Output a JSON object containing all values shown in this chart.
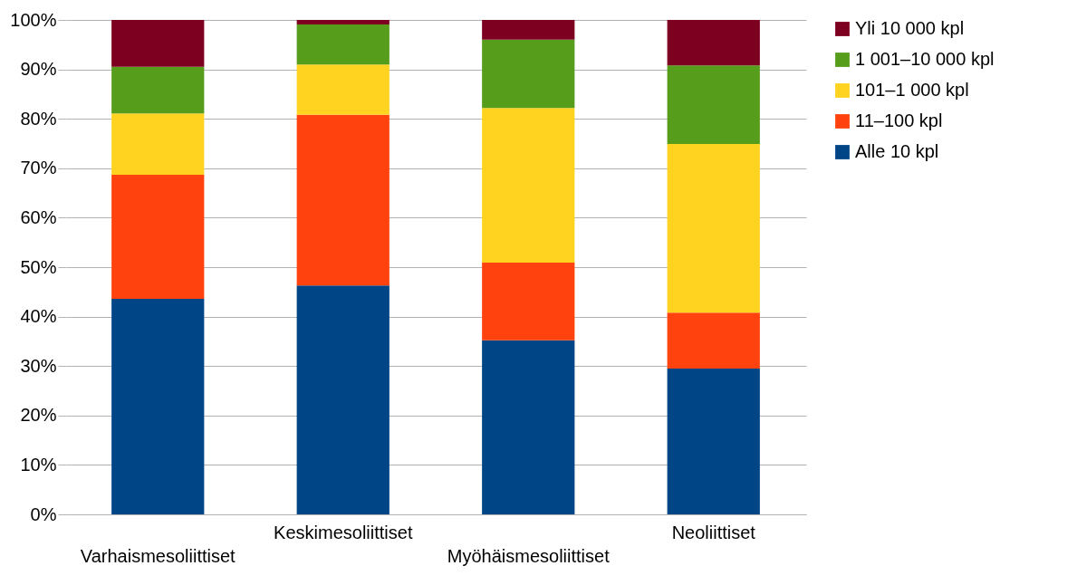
{
  "chart_data": {
    "type": "bar",
    "stacked": true,
    "categories": [
      "Varhaismesoliittiset",
      "Keskimesoliittiset",
      "Myöhäismesoliittiset",
      "Neoliittiset"
    ],
    "series": [
      {
        "name": "Alle 10 kpl",
        "color": "#004586",
        "values": [
          43.6,
          46.3,
          35.2,
          29.5
        ]
      },
      {
        "name": "11–100 kpl",
        "color": "#ff420e",
        "values": [
          25.1,
          34.5,
          15.7,
          11.3
        ]
      },
      {
        "name": "101–1 000 kpl",
        "color": "#ffd320",
        "values": [
          12.4,
          10.2,
          31.3,
          34.1
        ]
      },
      {
        "name": "1 001–10 000 kpl",
        "color": "#579d1c",
        "values": [
          9.4,
          8.1,
          13.8,
          15.9
        ]
      },
      {
        "name": "Yli 10 000 kpl",
        "color": "#7e0021",
        "values": [
          9.5,
          0.9,
          4.0,
          9.2
        ]
      }
    ],
    "ylim": [
      0,
      100
    ],
    "yticks": [
      {
        "value": 0,
        "label": "0%"
      },
      {
        "value": 10,
        "label": "10%"
      },
      {
        "value": 20,
        "label": "20%"
      },
      {
        "value": 30,
        "label": "30%"
      },
      {
        "value": 40,
        "label": "40%"
      },
      {
        "value": 50,
        "label": "50%"
      },
      {
        "value": 60,
        "label": "60%"
      },
      {
        "value": 70,
        "label": "70%"
      },
      {
        "value": 80,
        "label": "80%"
      },
      {
        "value": 90,
        "label": "90%"
      },
      {
        "value": 100,
        "label": "100%"
      }
    ],
    "grid": "y",
    "legend": "right"
  }
}
